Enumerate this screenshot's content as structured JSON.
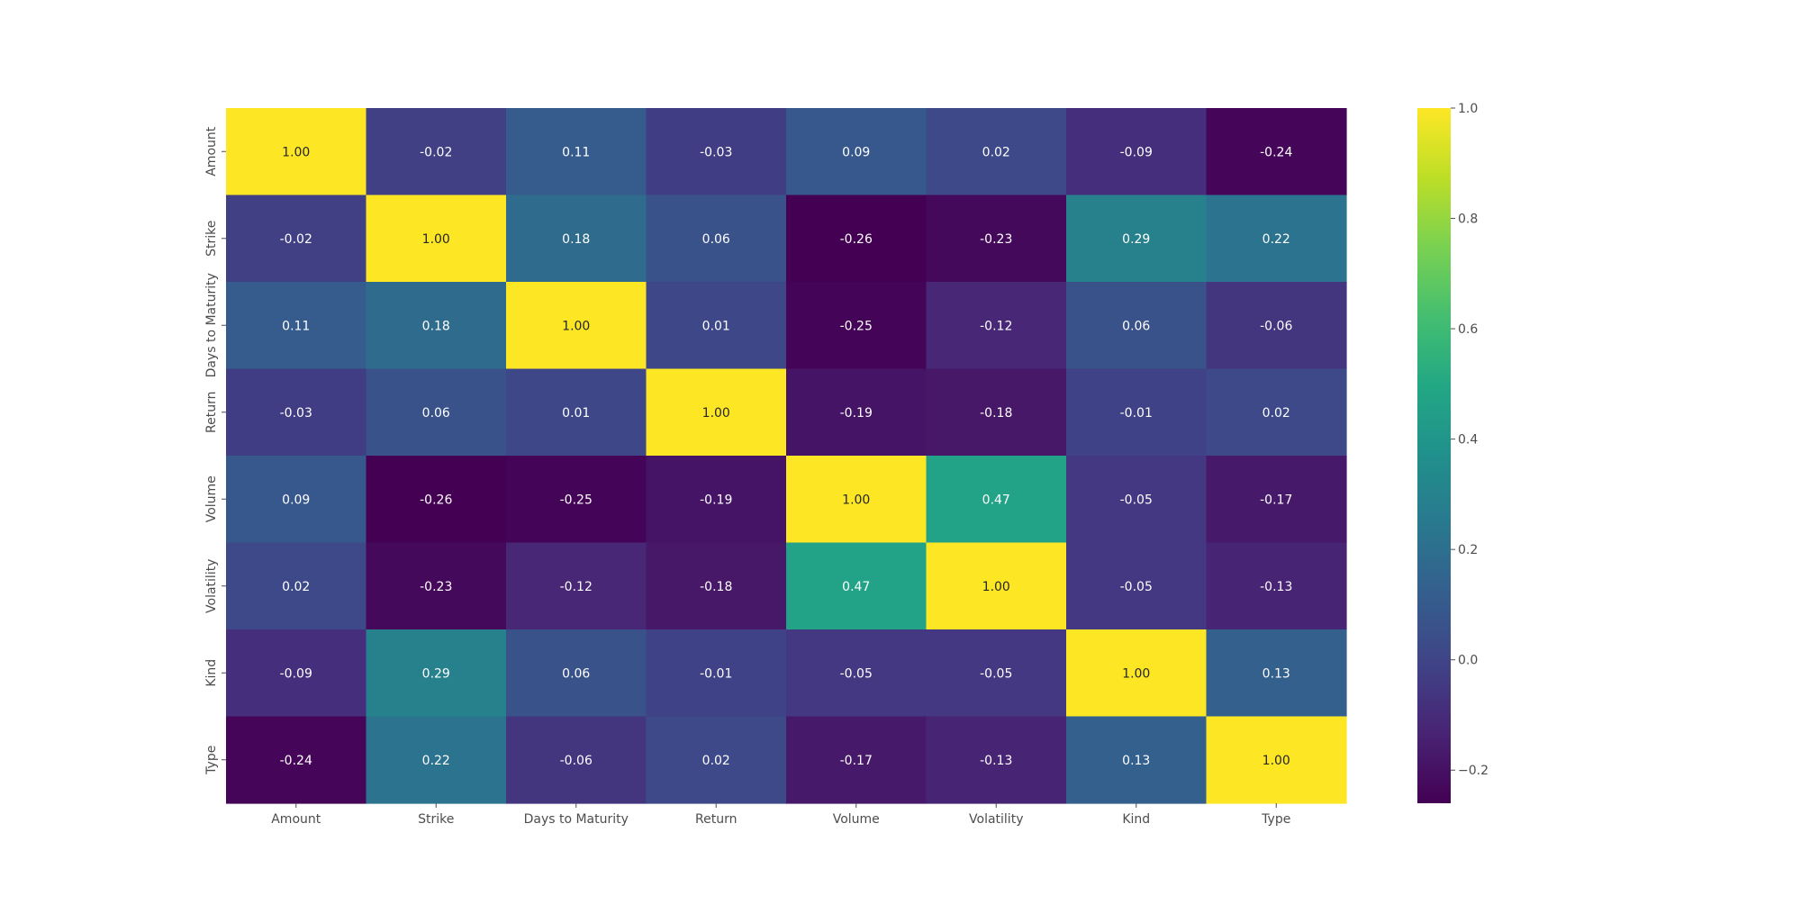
{
  "chart_data": {
    "type": "heatmap",
    "title": "",
    "xlabel": "",
    "ylabel": "",
    "x_categories": [
      "Amount",
      "Strike",
      "Days to Maturity",
      "Return",
      "Volume",
      "Volatility",
      "Kind",
      "Type"
    ],
    "y_categories": [
      "Amount",
      "Strike",
      "Days to Maturity",
      "Return",
      "Volume",
      "Volatility",
      "Kind",
      "Type"
    ],
    "values": [
      [
        1.0,
        -0.02,
        0.11,
        -0.03,
        0.09,
        0.02,
        -0.09,
        -0.24
      ],
      [
        -0.02,
        1.0,
        0.18,
        0.06,
        -0.26,
        -0.23,
        0.29,
        0.22
      ],
      [
        0.11,
        0.18,
        1.0,
        0.01,
        -0.25,
        -0.12,
        0.06,
        -0.06
      ],
      [
        -0.03,
        0.06,
        0.01,
        1.0,
        -0.19,
        -0.18,
        -0.01,
        0.02
      ],
      [
        0.09,
        -0.26,
        -0.25,
        -0.19,
        1.0,
        0.47,
        -0.05,
        -0.17
      ],
      [
        0.02,
        -0.23,
        -0.12,
        -0.18,
        0.47,
        1.0,
        -0.05,
        -0.13
      ],
      [
        -0.09,
        0.29,
        0.06,
        -0.01,
        -0.05,
        -0.05,
        1.0,
        0.13
      ],
      [
        -0.24,
        0.22,
        -0.06,
        0.02,
        -0.17,
        -0.13,
        0.13,
        1.0
      ]
    ],
    "annotation_format": "2 decimals",
    "colormap": "viridis",
    "value_range": [
      -0.26,
      1.0
    ],
    "colorbar": {
      "ticks": [
        -0.2,
        0.0,
        0.2,
        0.4,
        0.6,
        0.8,
        1.0
      ],
      "tick_labels": [
        "−0.2",
        "0.0",
        "0.2",
        "0.4",
        "0.6",
        "0.8",
        "1.0"
      ],
      "placement": "right"
    },
    "colors": {
      "axis_text": "#4d4d4d",
      "annotation_light": "#ffffff",
      "annotation_dark": "#262626"
    }
  }
}
